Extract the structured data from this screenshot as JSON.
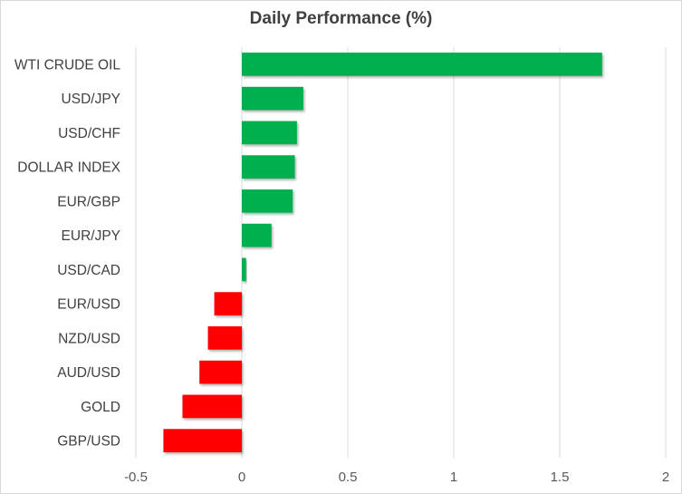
{
  "chart_data": {
    "type": "bar",
    "orientation": "horizontal",
    "title": "Daily Performance  (%)",
    "xlabel": "",
    "ylabel": "",
    "categories": [
      "WTI CRUDE OIL",
      "USD/JPY",
      "USD/CHF",
      "DOLLAR INDEX",
      "EUR/GBP",
      "EUR/JPY",
      "USD/CAD",
      "EUR/USD",
      "NZD/USD",
      "AUD/USD",
      "GOLD",
      "GBP/USD"
    ],
    "values": [
      1.7,
      0.29,
      0.26,
      0.25,
      0.24,
      0.14,
      0.02,
      -0.13,
      -0.16,
      -0.2,
      -0.28,
      -0.37
    ],
    "xlim": [
      -0.5,
      2
    ],
    "xticks": [
      -0.5,
      0,
      0.5,
      1,
      1.5,
      2
    ],
    "xtick_labels": [
      "-0.5",
      "0",
      "0.5",
      "1",
      "1.5",
      "2"
    ],
    "grid": "vertical",
    "legend": "none",
    "colors": {
      "positive": "#00b050",
      "negative": "#ff0000",
      "grid": "#d9d9d9"
    }
  }
}
